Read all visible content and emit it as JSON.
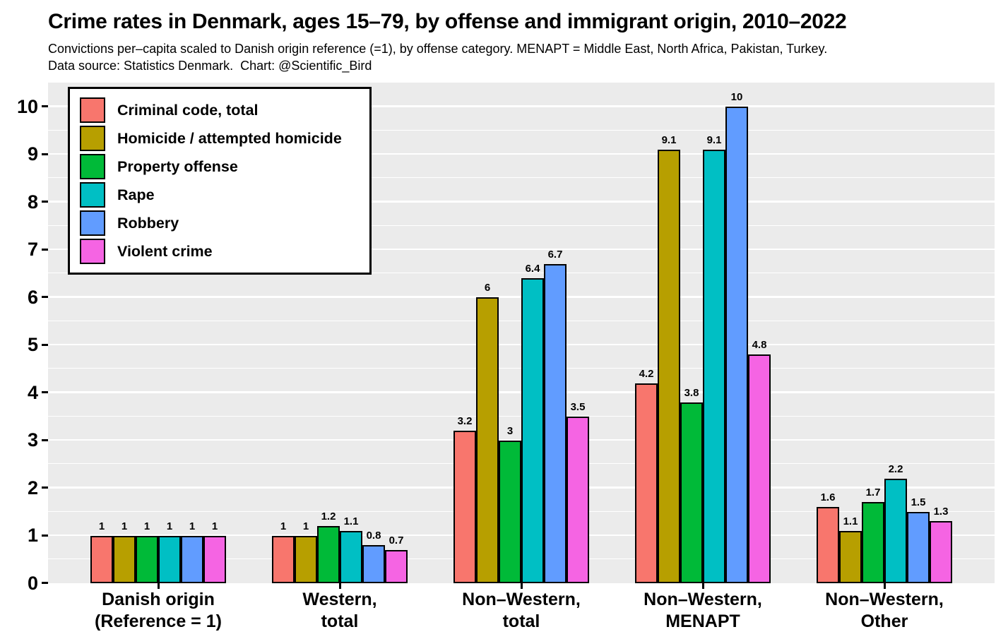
{
  "chart_data": {
    "type": "bar",
    "title": "Crime rates in Denmark, ages 15–79, by offense and immigrant origin, 2010–2022",
    "subtitle_line1": "Convictions per–capita scaled to Danish origin reference (=1), by offense category. MENAPT = Middle East, North Africa, Pakistan, Turkey.",
    "subtitle_line2": "Data source: Statistics Denmark.  Chart: @Scientific_Bird",
    "categories": [
      {
        "line1": "Danish origin",
        "line2": "(Reference = 1)"
      },
      {
        "line1": "Western,",
        "line2": "total"
      },
      {
        "line1": "Non–Western,",
        "line2": "total"
      },
      {
        "line1": "Non–Western,",
        "line2": "MENAPT"
      },
      {
        "line1": "Non–Western,",
        "line2": "Other"
      }
    ],
    "series": [
      {
        "name": "Criminal code, total",
        "color": "#F8766D",
        "values": [
          1,
          1,
          3.2,
          4.2,
          1.6
        ]
      },
      {
        "name": "Homicide / attempted homicide",
        "color": "#B79F00",
        "values": [
          1,
          1,
          6,
          9.1,
          1.1
        ]
      },
      {
        "name": "Property offense",
        "color": "#00BA38",
        "values": [
          1,
          1.2,
          3,
          3.8,
          1.7
        ]
      },
      {
        "name": "Rape",
        "color": "#00BFC4",
        "values": [
          1,
          1.1,
          6.4,
          9.1,
          2.2
        ]
      },
      {
        "name": "Robbery",
        "color": "#619CFF",
        "values": [
          1,
          0.8,
          6.7,
          10,
          1.5
        ]
      },
      {
        "name": "Violent crime",
        "color": "#F564E3",
        "values": [
          1,
          0.7,
          3.5,
          4.8,
          1.3
        ]
      }
    ],
    "ylabel": "",
    "xlabel": "",
    "ylim": [
      0,
      10
    ],
    "yticks": [
      0,
      1,
      2,
      3,
      4,
      5,
      6,
      7,
      8,
      9,
      10
    ],
    "minor_grid_step": 0.5,
    "grid": true,
    "legend_position": "top-left-inside",
    "bar_value_labels": true,
    "style": {
      "panel_bg": "#EBEBEB",
      "grid_color": "#FFFFFF",
      "bar_border": "#000000",
      "text_color": "#000000",
      "legend_bg": "#FFFFFF",
      "legend_border": "#000000"
    }
  }
}
